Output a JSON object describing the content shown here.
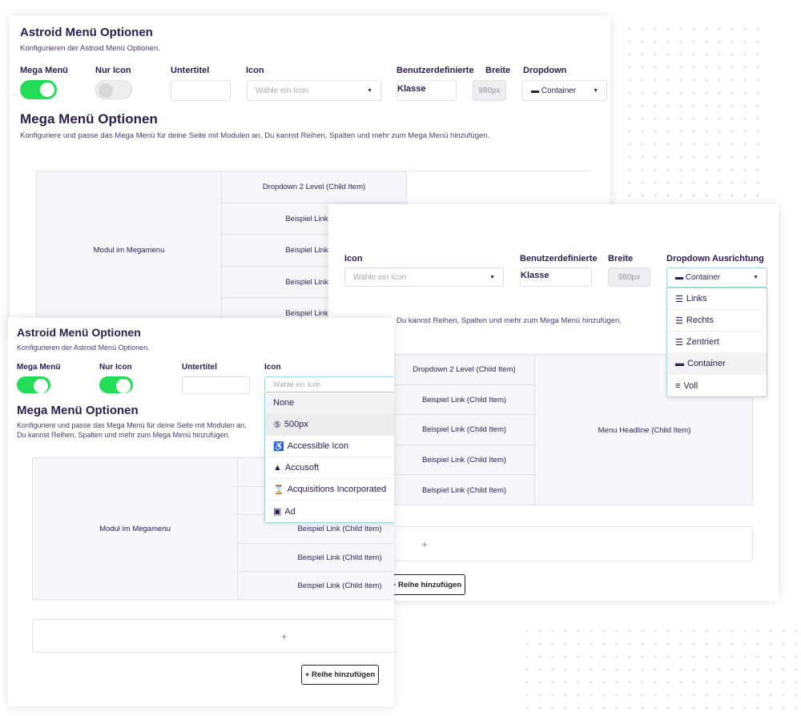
{
  "brand_color": "#22dd55",
  "panel_back": {
    "title": "Astroid Menü Optionen",
    "subtitle": "Konfigurieren der Astroid Menü Optionen.",
    "labels": {
      "mega": "Mega Menü",
      "nur_icon": "Nur Icon",
      "untertitel": "Untertitel",
      "icon": "Icon",
      "klasse": "Benutzerdefinierte",
      "breite": "Breite",
      "dropdown": "Dropdown"
    },
    "mega_on": true,
    "nur_icon_on": false,
    "icon_placeholder": "Wähle ein Icon",
    "klasse_value": "Klasse",
    "breite_value": "980px",
    "dropdown_value": "Container",
    "section_title": "Mega Menü Optionen",
    "section_desc": "Konfiguriere und passe das Mega Menü für deine Seite mit Modulen an. Du kannst Reihen, Spalten und mehr zum Mega Menü hinzufügen.",
    "module_cell": "Modul im Megamenu",
    "rows": [
      "Dropdown 2 Level (Child Item)",
      "Beispiel Link (Ch",
      "Beispiel Link (Ch",
      "Beispiel Link (Ch",
      "Beispiel Link (Ch"
    ]
  },
  "panel_right": {
    "labels": {
      "icon": "Icon",
      "klasse": "Benutzerdefinierte",
      "breite": "Breite",
      "dropdown": "Dropdown Ausrichtung"
    },
    "icon_placeholder": "Wähle ein Icon",
    "klasse_value": "Klasse",
    "breite_value": "980px",
    "dropdown_value": "Container",
    "dropdown_options": [
      {
        "icon": "align-left-icon",
        "label": "Links"
      },
      {
        "icon": "align-right-icon",
        "label": "Rechts"
      },
      {
        "icon": "align-center-icon",
        "label": "Zentriert"
      },
      {
        "icon": "container-icon",
        "label": "Container",
        "selected": true
      },
      {
        "icon": "full-icon",
        "label": "Voll"
      }
    ],
    "section_desc_partial": "Du kannst Reihen, Spalten und mehr zum Mega Menü hinzufügen.",
    "rows": [
      "Dropdown 2 Level (Child Item)",
      "Beispiel Link (Child Item)",
      "Beispiel Link (Child Item)",
      "Beispiel Link (Child Item)",
      "Beispiel Link (Child Item)"
    ],
    "headline_cell": "Menu Headline (Child Item)",
    "add_plus": "+",
    "add_row_button": "+ Reihe hinzufügen"
  },
  "panel_front": {
    "title": "Astroid Menü Optionen",
    "subtitle": "Konfigurieren der Astroid Menü Optionen.",
    "labels": {
      "mega": "Mega Menü",
      "nur_icon": "Nur Icon",
      "untertitel": "Untertitel",
      "icon": "Icon"
    },
    "mega_on": true,
    "nur_icon_on": true,
    "icon_placeholder": "Wähle ein Icon",
    "icon_options": [
      {
        "icon": "",
        "label": "None"
      },
      {
        "icon": "500px-icon",
        "label": "500px",
        "selected": true
      },
      {
        "icon": "accessible-icon",
        "label": "Accessible Icon"
      },
      {
        "icon": "accusoft-icon",
        "label": "Accusoft"
      },
      {
        "icon": "acquisitions-incorporated-icon",
        "label": "Acquisitions Incorporated"
      },
      {
        "icon": "ad-icon",
        "label": "Ad"
      }
    ],
    "section_title": "Mega Menü Optionen",
    "section_desc": "Konfiguriere und passe das Mega Menü für deine Seite mit Modulen an. Du kannst Reihen, Spalten und mehr zum Mega Menü hinzufügen.",
    "module_cell": "Modul im Megamenu",
    "rows": [
      "",
      "",
      "Beispiel Link (Child Item)",
      "Beispiel Link (Child Item)",
      "Beispiel Link (Child Item)"
    ],
    "add_plus": "+",
    "add_row_button": "+ Reihe hinzufügen"
  }
}
